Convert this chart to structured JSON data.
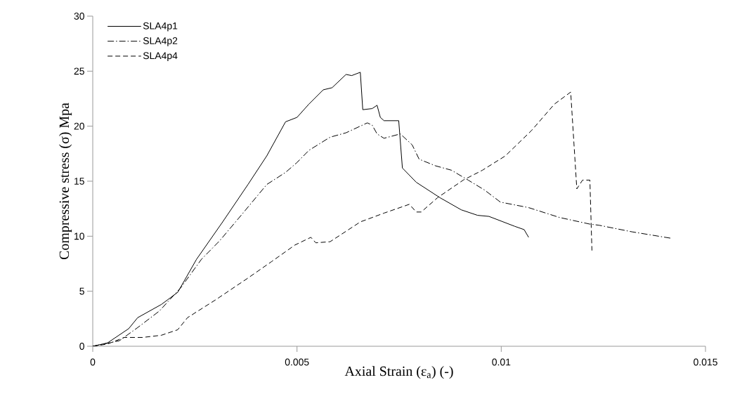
{
  "chart_data": {
    "type": "line",
    "xlabel": "Axial Strain (ε$_{a}$) (-)",
    "ylabel": "Compressive stress (σ) Mpa",
    "xlim": [
      0,
      0.015
    ],
    "ylim": [
      0,
      30
    ],
    "xticks": [
      0,
      0.005,
      0.01,
      0.015
    ],
    "yticks": [
      0,
      5,
      10,
      15,
      20,
      25,
      30
    ],
    "grid": false,
    "legend": "top left",
    "marker": "none",
    "series": [
      {
        "name": "SLA4p1",
        "color": "#000000",
        "line_style": "solid",
        "x": [
          0,
          0.00036,
          0.00088,
          0.0011,
          0.00168,
          0.00208,
          0.00254,
          0.00318,
          0.0038,
          0.00426,
          0.00472,
          0.005,
          0.00529,
          0.00564,
          0.00586,
          0.0062,
          0.00634,
          0.00655,
          0.00661,
          0.00684,
          0.00696,
          0.00704,
          0.00713,
          0.00749,
          0.00758,
          0.00792,
          0.0085,
          0.00902,
          0.00942,
          0.0097,
          0.01033,
          0.01056,
          0.01067
        ],
        "values": [
          0,
          0.3,
          1.6,
          2.6,
          3.8,
          4.9,
          7.9,
          11.3,
          14.7,
          17.3,
          20.4,
          20.8,
          22.0,
          23.3,
          23.5,
          24.7,
          24.6,
          24.9,
          21.5,
          21.6,
          21.9,
          20.8,
          20.5,
          20.5,
          16.2,
          14.9,
          13.5,
          12.4,
          11.9,
          11.8,
          10.9,
          10.6,
          9.9
        ]
      },
      {
        "name": "SLA4p2",
        "color": "#000000",
        "line_style": "dashdot",
        "x": [
          0,
          0.00065,
          0.0011,
          0.00163,
          0.00215,
          0.00266,
          0.00311,
          0.0037,
          0.00426,
          0.00472,
          0.005,
          0.00529,
          0.00581,
          0.0062,
          0.00672,
          0.00684,
          0.00696,
          0.00713,
          0.00753,
          0.00782,
          0.00799,
          0.00839,
          0.00878,
          0.00919,
          0.00959,
          0.00998,
          0.01067,
          0.01143,
          0.01217,
          0.01239,
          0.0132,
          0.01418
        ],
        "values": [
          0,
          0.5,
          1.7,
          3.2,
          5.3,
          7.9,
          9.6,
          12.2,
          14.7,
          15.8,
          16.7,
          17.8,
          19.0,
          19.4,
          20.3,
          20.1,
          19.3,
          18.9,
          19.3,
          18.3,
          17.0,
          16.4,
          16.0,
          15.1,
          14.2,
          13.1,
          12.6,
          11.7,
          11.1,
          11.0,
          10.4,
          9.8
        ]
      },
      {
        "name": "SLA4p4",
        "color": "#000000",
        "line_style": "dashed",
        "x": [
          0,
          0.00036,
          0.00077,
          0.00122,
          0.00168,
          0.00208,
          0.00232,
          0.003,
          0.0038,
          0.00438,
          0.00495,
          0.00534,
          0.00546,
          0.00581,
          0.00655,
          0.00713,
          0.00775,
          0.00792,
          0.00804,
          0.00844,
          0.00907,
          0.00954,
          0.0101,
          0.01074,
          0.0113,
          0.0117,
          0.01185,
          0.01199,
          0.01217,
          0.01222
        ],
        "values": [
          0,
          0.2,
          0.8,
          0.8,
          1.0,
          1.5,
          2.6,
          4.2,
          6.2,
          7.7,
          9.2,
          9.9,
          9.4,
          9.5,
          11.3,
          12.1,
          12.9,
          12.2,
          12.2,
          13.5,
          15.1,
          16.0,
          17.3,
          19.6,
          22.0,
          23.1,
          14.3,
          15.1,
          15.1,
          8.7
        ]
      }
    ]
  }
}
